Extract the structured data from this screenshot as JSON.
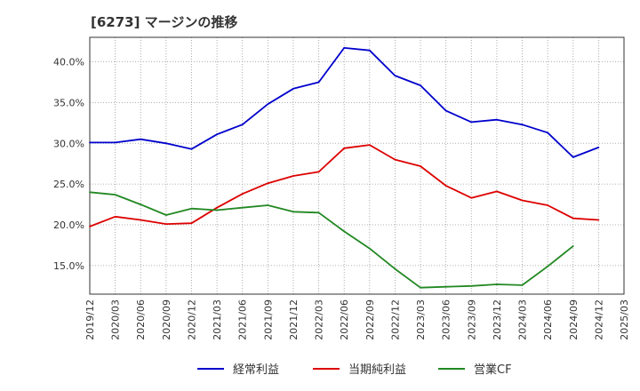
{
  "chart_data": {
    "type": "line",
    "title": "[6273]  マージンの推移",
    "x": [
      "2019/12",
      "2020/03",
      "2020/06",
      "2020/09",
      "2020/12",
      "2021/03",
      "2021/06",
      "2021/09",
      "2021/12",
      "2022/03",
      "2022/06",
      "2022/09",
      "2022/12",
      "2023/03",
      "2023/06",
      "2023/09",
      "2023/12",
      "2024/03",
      "2024/06",
      "2024/09",
      "2024/12",
      "2025/03"
    ],
    "ylim": [
      11.5,
      43.0
    ],
    "yticks": [
      15,
      20,
      25,
      30,
      35,
      40
    ],
    "ytick_labels": [
      "15.0%",
      "20.0%",
      "25.0%",
      "30.0%",
      "35.0%",
      "40.0%"
    ],
    "grid": true,
    "legend_position": "bottom",
    "series": [
      {
        "name": "経常利益",
        "color": "#0000cc",
        "values": [
          30.1,
          30.1,
          30.5,
          30.0,
          29.3,
          31.1,
          32.3,
          34.8,
          36.7,
          37.5,
          41.7,
          41.4,
          38.3,
          37.1,
          34.0,
          32.6,
          32.9,
          32.3,
          31.3,
          28.3,
          29.5,
          null
        ]
      },
      {
        "name": "当期純利益",
        "color": "#dd0000",
        "values": [
          19.8,
          21.0,
          20.6,
          20.1,
          20.2,
          22.1,
          23.8,
          25.1,
          26.0,
          26.5,
          29.4,
          29.8,
          28.0,
          27.2,
          24.8,
          23.3,
          24.1,
          23.0,
          22.4,
          20.8,
          20.6,
          null
        ]
      },
      {
        "name": "営業CF",
        "color": "#228822",
        "values": [
          24.0,
          23.7,
          22.5,
          21.2,
          22.0,
          21.8,
          22.1,
          22.4,
          21.6,
          21.5,
          19.2,
          17.1,
          14.6,
          12.3,
          12.4,
          12.5,
          12.7,
          12.6,
          14.9,
          17.4,
          null,
          null
        ]
      }
    ]
  }
}
